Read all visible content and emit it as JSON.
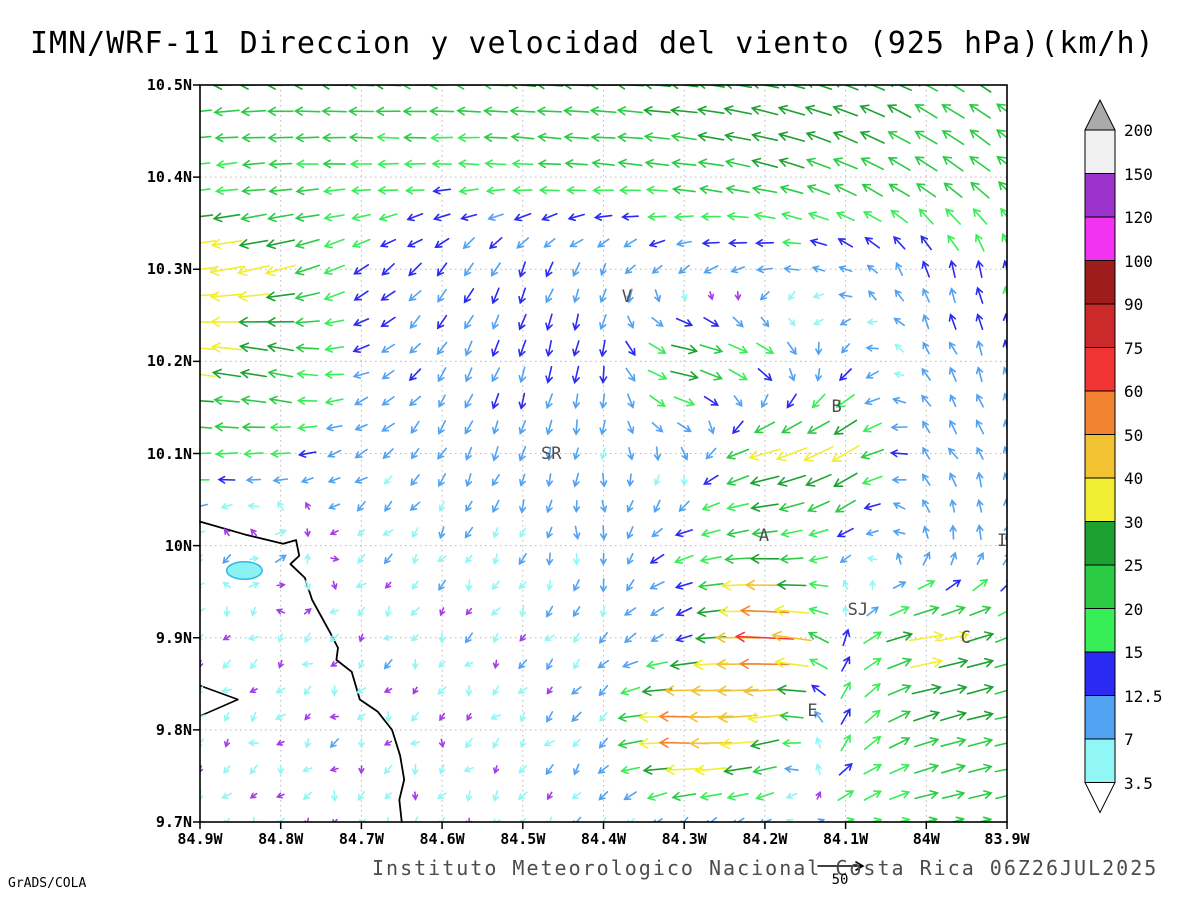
{
  "title": "IMN/WRF-11 Direccion y velocidad del viento (925 hPa)(km/h)",
  "footer": {
    "institute_line": "Instituto Meteorologico Nacional Costa Rica 06Z26JUL2025",
    "credit": "GrADS/COLA"
  },
  "chart_data": {
    "type": "vector_field",
    "title": "IMN/WRF-11 Direccion y velocidad del viento (925 hPa)(km/h)",
    "units": "km/h",
    "level": "925 hPa",
    "grid": "dotted",
    "x_axis": {
      "values": [
        84.9,
        84.8,
        84.7,
        84.6,
        84.5,
        84.4,
        84.3,
        84.2,
        84.1,
        84.0,
        83.9
      ],
      "labels": [
        "84.9W",
        "84.8W",
        "84.7W",
        "84.6W",
        "84.5W",
        "84.4W",
        "84.3W",
        "84.2W",
        "84.1W",
        "84W",
        "83.9W"
      ]
    },
    "y_axis": {
      "values": [
        10.5,
        10.4,
        10.3,
        10.2,
        10.1,
        10.0,
        9.9,
        9.8,
        9.7
      ],
      "labels": [
        "10.5N",
        "10.4N",
        "10.3N",
        "10.2N",
        "10.1N",
        "10N",
        "9.9N",
        "9.8N",
        "9.7N"
      ]
    },
    "colorbar": {
      "levels": [
        3.5,
        7,
        12.5,
        15,
        20,
        25,
        30,
        40,
        50,
        60,
        75,
        90,
        100,
        120,
        150,
        200
      ],
      "labels": [
        "3.5",
        "7",
        "12.5",
        "15",
        "20",
        "25",
        "30",
        "40",
        "50",
        "60",
        "75",
        "90",
        "100",
        "120",
        "150",
        "200"
      ],
      "band_colors": [
        "#90f6f6",
        "#52a2f2",
        "#2a2af2",
        "#38ee56",
        "#2bcc44",
        "#1da232",
        "#f2ee33",
        "#f2c233",
        "#f28431",
        "#f23333",
        "#cc2a2a",
        "#9e1c1c",
        "#f233f2",
        "#9c33cc",
        "#f0f0f0"
      ],
      "below_color": "#ffffff",
      "above_color": "#aaaaaa",
      "calm_arrow_color": "#a43ce8"
    },
    "reference_vector": {
      "speed": 50,
      "label": "50"
    },
    "stations": [
      {
        "label": "V",
        "lon": 84.37,
        "lat": 10.27
      },
      {
        "label": "B",
        "lon": 84.11,
        "lat": 10.15
      },
      {
        "label": "SR",
        "lon": 84.47,
        "lat": 10.1
      },
      {
        "label": "A",
        "lon": 84.2,
        "lat": 10.01
      },
      {
        "label": "SJ",
        "lon": 84.09,
        "lat": 9.93
      },
      {
        "label": "C",
        "lon": 83.95,
        "lat": 9.9
      },
      {
        "label": "E",
        "lon": 84.14,
        "lat": 9.82
      },
      {
        "label": "I",
        "lon": 83.905,
        "lat": 10.005
      }
    ],
    "wind_grid": {
      "lons": [
        84.9,
        84.8,
        84.7,
        84.6,
        84.5,
        84.4,
        84.3,
        84.2,
        84.1,
        84.0,
        83.9
      ],
      "lats": [
        10.5,
        10.4,
        10.3,
        10.2,
        10.1,
        10.0,
        9.9,
        9.8,
        9.7
      ],
      "u": [
        [
          -25,
          -26,
          -25,
          -24,
          -25,
          -26,
          -27,
          -27,
          -25,
          -22,
          -20
        ],
        [
          -16,
          -20,
          -18,
          -16,
          -18,
          -20,
          -22,
          -24,
          -22,
          -20,
          -18
        ],
        [
          -38,
          -30,
          -12,
          -8,
          -5,
          -4,
          -8,
          -12,
          -8,
          -4,
          -3
        ],
        [
          -32,
          -24,
          -12,
          -6,
          -4,
          -2,
          30,
          18,
          -6,
          -5,
          -3
        ],
        [
          -20,
          -16,
          -8,
          -5,
          -3,
          -1,
          4,
          -32,
          -28,
          -6,
          -4
        ],
        [
          -4,
          8,
          -4,
          -3,
          -3,
          2,
          -16,
          -22,
          -10,
          -2,
          2
        ],
        [
          -3,
          -3,
          -3,
          -2,
          -3,
          -5,
          -12,
          -65,
          5,
          35,
          22
        ],
        [
          -3,
          -3,
          -2,
          -2,
          -3,
          -6,
          -62,
          -30,
          8,
          24,
          24
        ],
        [
          -2,
          -2,
          -2,
          -2,
          -3,
          -4,
          -6,
          -10,
          14,
          20,
          20
        ]
      ],
      "v": [
        [
          -2,
          0,
          1,
          0,
          2,
          1,
          3,
          6,
          9,
          12,
          14
        ],
        [
          -2,
          -1,
          0,
          0,
          1,
          2,
          3,
          6,
          10,
          13,
          15
        ],
        [
          -5,
          -8,
          -8,
          -10,
          -12,
          -8,
          -5,
          -2,
          4,
          12,
          15
        ],
        [
          4,
          6,
          -4,
          -10,
          -13,
          -14,
          -6,
          -10,
          -8,
          8,
          12
        ],
        [
          0,
          -2,
          -5,
          -9,
          -10,
          -8,
          -8,
          -9,
          -16,
          8,
          10
        ],
        [
          -3,
          5,
          -4,
          -5,
          -6,
          -9,
          -5,
          -1,
          -6,
          9,
          10
        ],
        [
          -3,
          -3,
          -3,
          -4,
          -4,
          -6,
          -5,
          3,
          12,
          6,
          8
        ],
        [
          -3,
          -2,
          -3,
          -3,
          -4,
          -6,
          2,
          -6,
          14,
          8,
          5
        ],
        [
          -3,
          -3,
          -4,
          -4,
          -4,
          -5,
          -6,
          -4,
          5,
          5,
          5
        ]
      ]
    },
    "coastline": [
      [
        84.9,
        10.026
      ],
      [
        84.844,
        10.012
      ],
      [
        84.797,
        10.002
      ],
      [
        84.781,
        10.006
      ],
      [
        84.777,
        9.989
      ],
      [
        84.788,
        9.98
      ],
      [
        84.77,
        9.965
      ],
      [
        84.761,
        9.941
      ],
      [
        84.739,
        9.906
      ],
      [
        84.729,
        9.889
      ],
      [
        84.731,
        9.876
      ],
      [
        84.712,
        9.863
      ],
      [
        84.702,
        9.833
      ],
      [
        84.68,
        9.82
      ],
      [
        84.662,
        9.8
      ],
      [
        84.652,
        9.772
      ],
      [
        84.647,
        9.746
      ],
      [
        84.653,
        9.724
      ],
      [
        84.65,
        9.7
      ]
    ],
    "peninsula": [
      [
        84.9,
        9.848
      ],
      [
        84.853,
        9.833
      ],
      [
        84.9,
        9.815
      ]
    ],
    "lake": {
      "lon": 84.845,
      "lat": 9.973,
      "rx_deg": 0.022,
      "ry_deg": 0.0095,
      "fill": "#8af2f2",
      "edge": "#30b8e8"
    }
  }
}
